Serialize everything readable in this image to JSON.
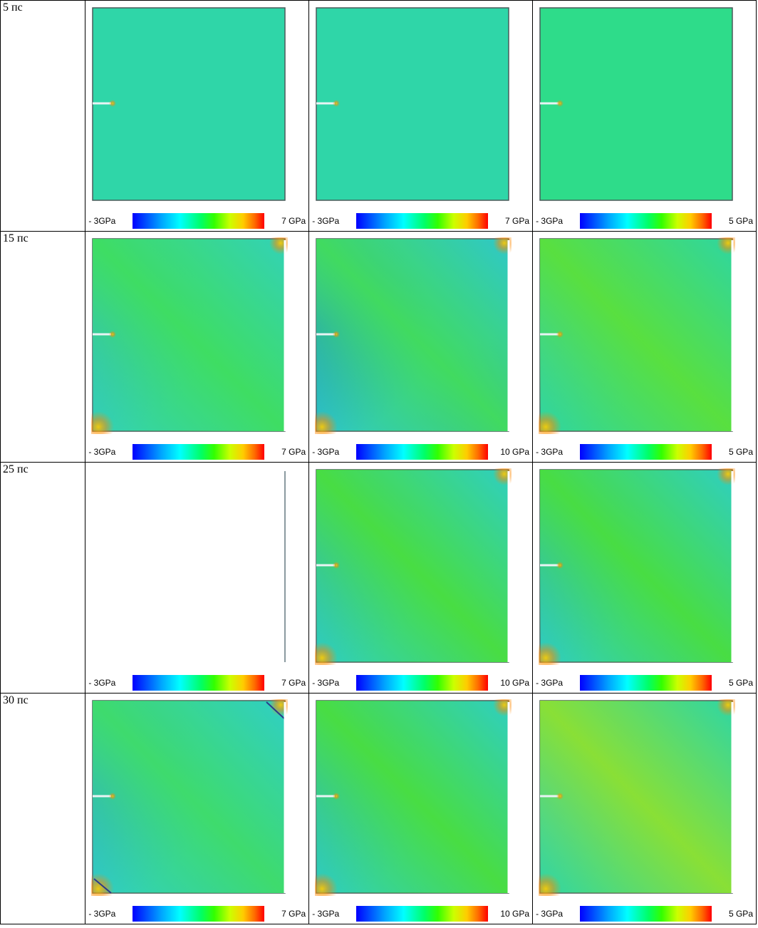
{
  "rows": [
    {
      "time": "5 пс",
      "cells": [
        {
          "lo": "- 3GPa",
          "hi": "7 GPa",
          "variant": "uniform"
        },
        {
          "lo": "- 3GPa",
          "hi": "7 GPa",
          "variant": "uniform"
        },
        {
          "lo": "- 3GPa",
          "hi": "5 GPa",
          "variant": "uniform-green"
        }
      ]
    },
    {
      "time": "15 пс",
      "cells": [
        {
          "lo": "- 3GPa",
          "hi": "7 GPa",
          "variant": "diag-light"
        },
        {
          "lo": "- 3GPa",
          "hi": "10 GPa",
          "variant": "diag-blue"
        },
        {
          "lo": "- 3GPa",
          "hi": "5 GPa",
          "variant": "diag-green"
        }
      ]
    },
    {
      "time": "25 пс",
      "cells": [
        {
          "lo": "- 3GPa",
          "hi": "7 GPa",
          "variant": "empty"
        },
        {
          "lo": "- 3GPa",
          "hi": "10 GPa",
          "variant": "diag-strong"
        },
        {
          "lo": "- 3GPa",
          "hi": "5 GPa",
          "variant": "diag-strong"
        }
      ]
    },
    {
      "time": "30 пс",
      "cells": [
        {
          "lo": "- 3GPa",
          "hi": "7 GPa",
          "variant": "diag-crack"
        },
        {
          "lo": "- 3GPa",
          "hi": "10 GPa",
          "variant": "diag-strong"
        },
        {
          "lo": "- 3GPa",
          "hi": "5 GPa",
          "variant": "diag-yellow"
        }
      ]
    }
  ]
}
